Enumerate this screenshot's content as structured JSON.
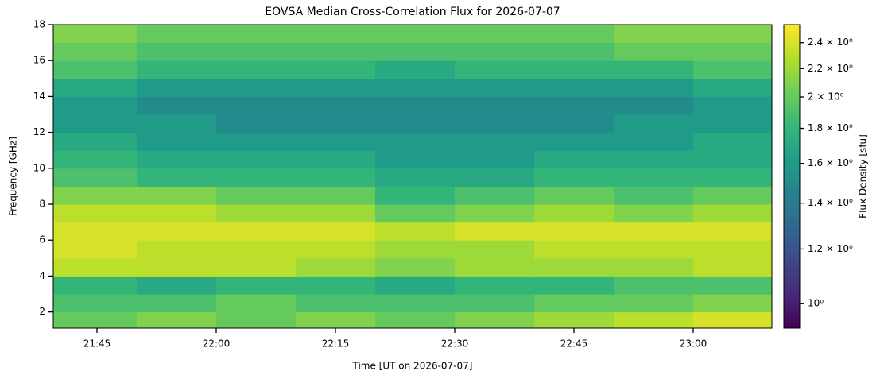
{
  "chart_data": {
    "type": "heatmap",
    "title": "EOVSA Median Cross-Correlation Flux for 2026-07-07",
    "x_label": "Time [UT on 2026-07-07]",
    "y_label": "Frequency [GHz]",
    "colorbar_label": "Flux Density [sfu]",
    "colormap": "viridis",
    "color_scale": "log",
    "xlim": [
      "21:39:30",
      "23:09:54"
    ],
    "xticks": [
      "21:45",
      "22:00",
      "22:15",
      "22:30",
      "22:45",
      "23:00"
    ],
    "ylim": [
      1.1,
      18
    ],
    "yticks": [
      2,
      4,
      6,
      8,
      10,
      12,
      14,
      16,
      18
    ],
    "clim": [
      0.92,
      2.55
    ],
    "cticks": [
      {
        "value": 1.0,
        "label": "10⁰"
      },
      {
        "value": 1.2,
        "label": "1.2 × 10⁰"
      },
      {
        "value": 1.4,
        "label": "1.4 × 10⁰"
      },
      {
        "value": 1.6,
        "label": "1.6 × 10⁰"
      },
      {
        "value": 1.8,
        "label": "1.8 × 10⁰"
      },
      {
        "value": 2.0,
        "label": "2 × 10⁰"
      },
      {
        "value": 2.2,
        "label": "2.2 × 10⁰"
      },
      {
        "value": 2.4,
        "label": "2.4 × 10⁰"
      }
    ],
    "xbins": [
      "21:39:30",
      "21:50",
      "22:00",
      "22:10",
      "22:20",
      "22:30",
      "22:40",
      "22:50",
      "23:00",
      "23:09:54"
    ],
    "ybins": [
      1.1,
      2,
      3,
      4,
      5,
      6,
      7,
      8,
      9,
      10,
      11,
      12,
      13,
      14,
      15,
      16,
      17,
      18
    ],
    "z": [
      [
        2.0,
        2.1,
        2.0,
        2.1,
        2.0,
        2.1,
        2.2,
        2.3,
        2.4
      ],
      [
        1.9,
        1.9,
        2.0,
        1.9,
        1.9,
        1.9,
        2.0,
        2.0,
        2.1
      ],
      [
        1.8,
        1.7,
        1.8,
        1.8,
        1.7,
        1.8,
        1.8,
        1.9,
        1.9
      ],
      [
        2.3,
        2.3,
        2.3,
        2.2,
        2.1,
        2.2,
        2.2,
        2.2,
        2.3
      ],
      [
        2.4,
        2.3,
        2.3,
        2.3,
        2.2,
        2.2,
        2.3,
        2.3,
        2.3
      ],
      [
        2.4,
        2.4,
        2.4,
        2.4,
        2.3,
        2.4,
        2.4,
        2.4,
        2.4
      ],
      [
        2.3,
        2.3,
        2.2,
        2.2,
        2.0,
        2.1,
        2.2,
        2.1,
        2.2
      ],
      [
        2.1,
        2.1,
        2.0,
        2.0,
        1.8,
        1.9,
        2.0,
        1.9,
        2.0
      ],
      [
        1.9,
        1.8,
        1.8,
        1.8,
        1.7,
        1.7,
        1.8,
        1.8,
        1.8
      ],
      [
        1.8,
        1.7,
        1.7,
        1.7,
        1.6,
        1.6,
        1.7,
        1.7,
        1.7
      ],
      [
        1.7,
        1.6,
        1.6,
        1.6,
        1.6,
        1.6,
        1.6,
        1.6,
        1.7
      ],
      [
        1.6,
        1.6,
        1.5,
        1.5,
        1.5,
        1.5,
        1.5,
        1.6,
        1.6
      ],
      [
        1.6,
        1.5,
        1.5,
        1.5,
        1.5,
        1.5,
        1.5,
        1.5,
        1.6
      ],
      [
        1.7,
        1.6,
        1.6,
        1.6,
        1.6,
        1.6,
        1.6,
        1.6,
        1.7
      ],
      [
        1.9,
        1.8,
        1.8,
        1.8,
        1.7,
        1.8,
        1.8,
        1.8,
        1.9
      ],
      [
        2.0,
        1.9,
        1.9,
        1.9,
        1.9,
        1.9,
        1.9,
        2.0,
        2.0
      ],
      [
        2.1,
        2.0,
        2.0,
        2.0,
        2.0,
        2.0,
        2.0,
        2.1,
        2.1
      ]
    ]
  }
}
